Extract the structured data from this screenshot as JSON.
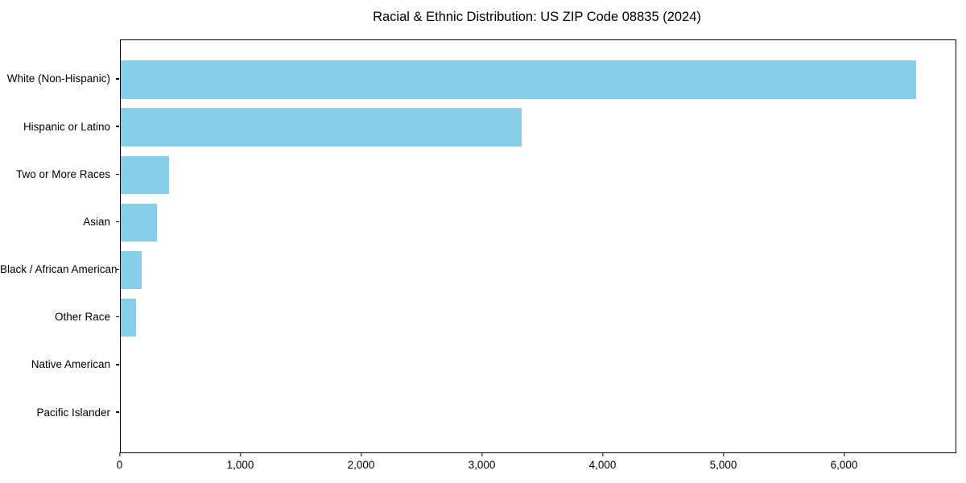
{
  "chart_data": {
    "type": "bar",
    "orientation": "horizontal",
    "title": "Racial & Ethnic Distribution: US ZIP Code 08835 (2024)",
    "categories": [
      "White (Non-Hispanic)",
      "Hispanic or Latino",
      "Two or More Races",
      "Asian",
      "Black / African American",
      "Other Race",
      "Native American",
      "Pacific Islander"
    ],
    "values": [
      6590,
      3325,
      400,
      305,
      175,
      130,
      0,
      0
    ],
    "xlabel": "",
    "ylabel": "",
    "xlim": [
      0,
      6913
    ],
    "x_ticks": [
      0,
      1000,
      2000,
      3000,
      4000,
      5000,
      6000
    ],
    "x_tick_labels": [
      "0",
      "1,000",
      "2,000",
      "3,000",
      "4,000",
      "5,000",
      "6,000"
    ],
    "bar_color": "#87CEEB",
    "background_color": "#ffffff",
    "grid": false,
    "legend": null
  }
}
